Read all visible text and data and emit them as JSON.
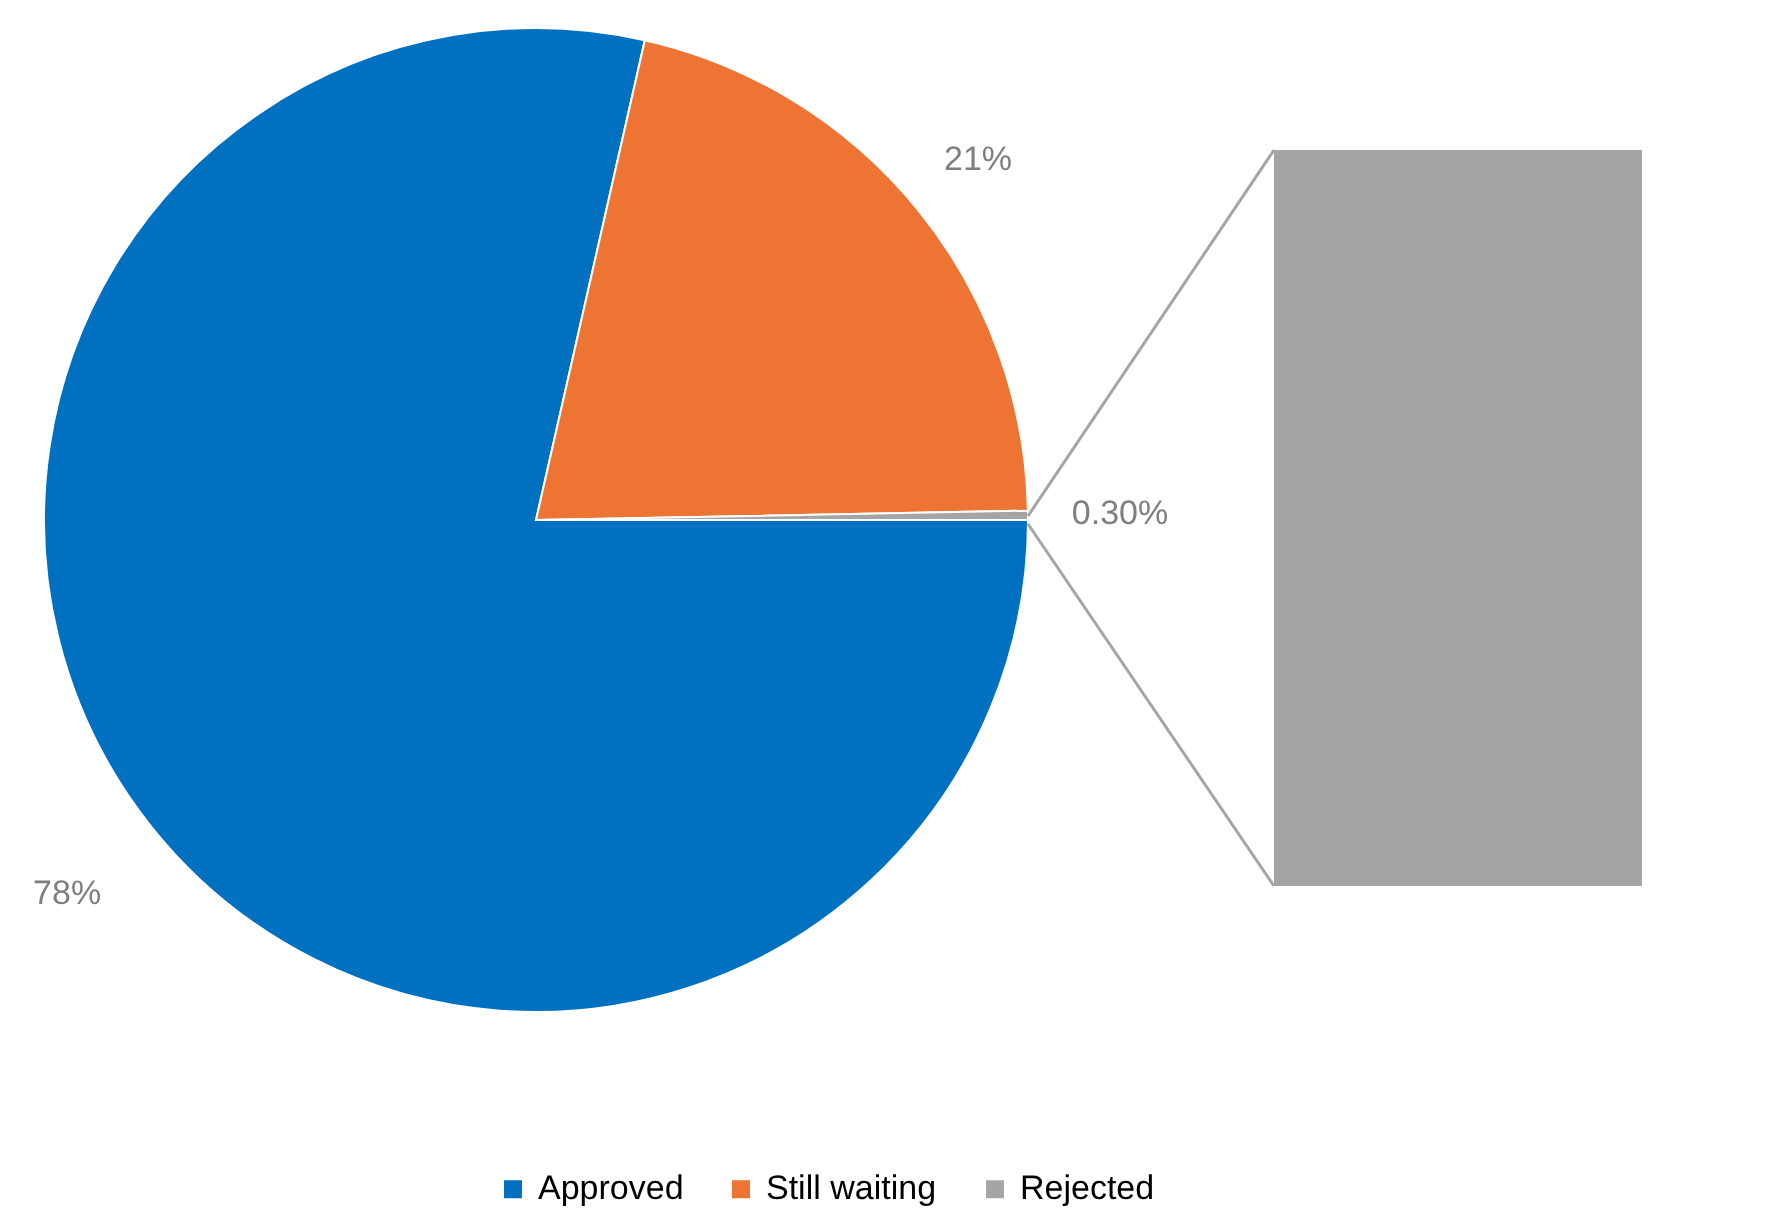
{
  "chart_data": {
    "type": "pie",
    "categories": [
      "Approved",
      "Still waiting",
      "Rejected"
    ],
    "values": [
      78,
      21,
      0.3
    ],
    "colors": [
      "#0070c0",
      "#ed7433",
      "#a5a5a5"
    ],
    "value_labels": [
      "78%",
      "21%",
      "0.30%"
    ],
    "legend": "bottom"
  }
}
